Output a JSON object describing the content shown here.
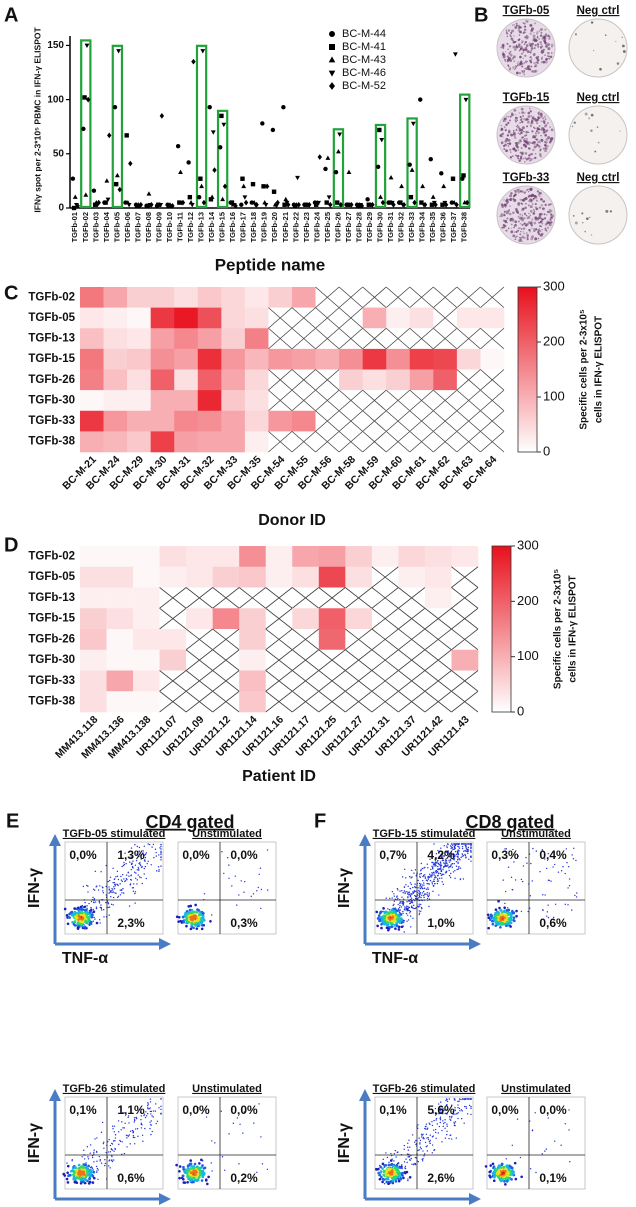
{
  "panel_labels": [
    "A",
    "B",
    "C",
    "D",
    "E",
    "F"
  ],
  "chart_data": [
    {
      "type": "scatter",
      "ylabel": "IFNγ spot per 2-3*10⁵ PBMC in IFN-γ ELISPOT",
      "xlabel": "Peptide name",
      "categories": [
        "TGFb-01",
        "TGFb-02",
        "TGFb-03",
        "TGFb-04",
        "TGFb-05",
        "TGFb-06",
        "TGFb-07",
        "TGFb-08",
        "TGFb-09",
        "TGFb-10",
        "TGFb-11",
        "TGFb-12",
        "TGFb-13",
        "TGFb-14",
        "TGFb-15",
        "TGFb-16",
        "TGFb-17",
        "TGFb-18",
        "TGFb-19",
        "TGFb-20",
        "TGFb-21",
        "TGFb-22",
        "TGFb-23",
        "TGFb-24",
        "TGFb-25",
        "TGFb-26",
        "TGFb-27",
        "TGFb-28",
        "TGFb-29",
        "TGFb-30",
        "TGFb-31",
        "TGFb-32",
        "TGFb-33",
        "TGFb-34",
        "TGFb-35",
        "TGFb-36",
        "TGFb-37",
        "TGFb-38"
      ],
      "series": [
        {
          "name": "BC-M-44",
          "marker": "circle",
          "color": "#000000",
          "values": [
            27,
            73,
            16,
            5,
            93,
            5,
            3,
            2,
            2,
            3,
            57,
            42,
            10,
            93,
            56,
            5,
            3,
            5,
            78,
            72,
            93,
            3,
            3,
            5,
            36,
            33,
            3,
            3,
            8,
            38,
            5,
            5,
            40,
            100,
            45,
            32,
            5,
            27
          ]
        },
        {
          "name": "BC-M-41",
          "marker": "square",
          "color": "#000000",
          "values": [
            0,
            102,
            3,
            5,
            22,
            67,
            2,
            2,
            3,
            2,
            5,
            10,
            27,
            8,
            85,
            5,
            27,
            22,
            20,
            15,
            3,
            2,
            3,
            3,
            5,
            5,
            3,
            2,
            3,
            72,
            5,
            5,
            10,
            5,
            3,
            3,
            27,
            30
          ]
        },
        {
          "name": "BC-M-43",
          "marker": "triangle",
          "color": "#000000",
          "values": [
            10,
            12,
            5,
            25,
            30,
            5,
            3,
            13,
            3,
            3,
            33,
            5,
            20,
            10,
            8,
            3,
            20,
            5,
            5,
            3,
            8,
            3,
            3,
            5,
            46,
            52,
            33,
            3,
            3,
            10,
            28,
            20,
            35,
            20,
            10,
            20,
            5,
            5
          ]
        },
        {
          "name": "BC-M-46",
          "marker": "triangle-down",
          "color": "#000000",
          "values": [
            3,
            150,
            3,
            8,
            145,
            3,
            2,
            3,
            3,
            2,
            5,
            3,
            145,
            70,
            77,
            3,
            10,
            3,
            3,
            2,
            5,
            28,
            3,
            5,
            10,
            68,
            3,
            3,
            3,
            63,
            5,
            3,
            78,
            3,
            5,
            5,
            142,
            100
          ]
        },
        {
          "name": "BC-M-52",
          "marker": "diamond",
          "color": "#000000",
          "values": [
            2,
            100,
            5,
            67,
            17,
            41,
            3,
            3,
            85,
            2,
            5,
            135,
            5,
            35,
            20,
            2,
            5,
            3,
            20,
            5,
            3,
            3,
            3,
            47,
            3,
            3,
            3,
            2,
            3,
            5,
            3,
            3,
            5,
            3,
            3,
            3,
            3,
            5
          ]
        }
      ],
      "ylim": [
        0,
        155
      ],
      "yticks": [
        0,
        50,
        100,
        150
      ],
      "legend": "upper right",
      "highlight": [
        1,
        4,
        12,
        14,
        25,
        29,
        32,
        37
      ],
      "highlight_color": "#22a33a"
    },
    {
      "type": "heatmap",
      "rows": [
        "TGFb-02",
        "TGFb-05",
        "TGFb-13",
        "TGFb-15",
        "TGFb-26",
        "TGFb-30",
        "TGFb-33",
        "TGFb-38"
      ],
      "categories": [
        "BC-M-21",
        "BC-M-24",
        "BC-M-29",
        "BC-M-30",
        "BC-M-31",
        "BC-M-32",
        "BC-M-33",
        "BC-M-35",
        "BC-M-54",
        "BC-M-55",
        "BC-M-56",
        "BC-M-58",
        "BC-M-59",
        "BC-M-60",
        "BC-M-61",
        "BC-M-62",
        "BC-M-63",
        "BC-M-64"
      ],
      "values": [
        [
          170,
          110,
          60,
          60,
          40,
          70,
          50,
          30,
          60,
          110,
          null,
          null,
          null,
          null,
          null,
          null,
          null,
          null
        ],
        [
          30,
          20,
          10,
          250,
          290,
          220,
          50,
          40,
          null,
          null,
          null,
          null,
          100,
          20,
          40,
          null,
          30,
          30
        ],
        [
          80,
          40,
          30,
          120,
          150,
          120,
          60,
          160,
          null,
          null,
          null,
          null,
          null,
          null,
          null,
          null,
          null,
          null
        ],
        [
          170,
          60,
          70,
          140,
          120,
          260,
          130,
          90,
          130,
          120,
          100,
          140,
          250,
          140,
          240,
          230,
          50,
          10
        ],
        [
          160,
          80,
          40,
          200,
          40,
          200,
          110,
          50,
          null,
          null,
          null,
          60,
          40,
          60,
          120,
          200,
          null,
          null
        ],
        [
          10,
          20,
          20,
          100,
          100,
          270,
          70,
          40,
          null,
          null,
          null,
          null,
          null,
          null,
          null,
          null,
          null,
          null
        ],
        [
          250,
          130,
          100,
          100,
          150,
          140,
          110,
          50,
          130,
          150,
          null,
          null,
          null,
          null,
          null,
          null,
          null,
          null
        ],
        [
          100,
          90,
          70,
          240,
          120,
          110,
          110,
          20,
          null,
          null,
          null,
          null,
          null,
          null,
          null,
          null,
          null,
          null
        ]
      ],
      "zlim": [
        0,
        300
      ],
      "zticks": [
        0,
        100,
        200,
        300
      ],
      "cmap": [
        "#ffffff",
        "#e8101c"
      ],
      "xlabel": "Donor ID",
      "colorbar_label": [
        "Specific cells per 2-3x10⁵",
        "cells in IFN-γ ELISPOT"
      ]
    },
    {
      "type": "heatmap",
      "rows": [
        "TGFb-02",
        "TGFb-05",
        "TGFb-13",
        "TGFb-15",
        "TGFb-26",
        "TGFb-30",
        "TGFb-33",
        "TGFb-38"
      ],
      "categories": [
        "MM413.118",
        "MM413.136",
        "MM413.138",
        "UR1121.07",
        "UR1121.09",
        "UR1121.12",
        "UR1121.14",
        "UR1121.16",
        "UR1121.17",
        "UR1121.25",
        "UR1121.27",
        "UR1121.31",
        "UR1121.37",
        "UR1121.42",
        "UR1121.43"
      ],
      "values": [
        [
          10,
          10,
          10,
          40,
          30,
          30,
          140,
          20,
          110,
          120,
          60,
          20,
          50,
          40,
          30
        ],
        [
          40,
          40,
          10,
          20,
          30,
          60,
          70,
          20,
          40,
          230,
          40,
          null,
          20,
          30,
          null
        ],
        [
          20,
          20,
          20,
          null,
          null,
          null,
          null,
          null,
          null,
          null,
          null,
          null,
          null,
          20,
          null
        ],
        [
          60,
          40,
          20,
          null,
          30,
          150,
          60,
          null,
          50,
          200,
          50,
          null,
          null,
          null,
          null
        ],
        [
          70,
          10,
          30,
          30,
          null,
          null,
          60,
          null,
          null,
          190,
          null,
          null,
          null,
          null,
          null
        ],
        [
          20,
          10,
          10,
          60,
          null,
          null,
          20,
          null,
          null,
          null,
          null,
          null,
          null,
          null,
          100
        ],
        [
          40,
          110,
          30,
          null,
          null,
          null,
          80,
          null,
          null,
          null,
          null,
          null,
          null,
          null,
          null
        ],
        [
          40,
          10,
          10,
          null,
          null,
          null,
          70,
          null,
          null,
          null,
          null,
          null,
          null,
          null,
          null
        ]
      ],
      "zlim": [
        0,
        300
      ],
      "zticks": [
        0,
        100,
        200,
        300
      ],
      "cmap": [
        "#ffffff",
        "#e8101c"
      ],
      "xlabel": "Patient ID",
      "colorbar_label": [
        "Specific cells per 2-3x10⁵",
        "cells in IFN-γ ELISPOT"
      ]
    }
  ],
  "elispot": {
    "wells": [
      {
        "label": "TGFb-05"
      },
      {
        "label": "Neg ctrl"
      },
      {
        "label": "TGFb-15"
      },
      {
        "label": "Neg ctrl"
      },
      {
        "label": "TGFb-33"
      },
      {
        "label": "Neg ctrl"
      }
    ]
  },
  "flow": [
    {
      "title": "CD4 gated",
      "y_label": "IFN-γ",
      "x_label": "TNF-α",
      "plots": [
        {
          "title": "TGFb-05 stimulated",
          "quadrants": [
            "0,0%",
            "1,3%",
            "2,3%"
          ]
        },
        {
          "title": "Unstimulated",
          "quadrants": [
            "0,0%",
            "0,0%",
            "0,3%"
          ]
        },
        {
          "title": "TGFb-26 stimulated",
          "quadrants": [
            "0,1%",
            "1,1%",
            "0,6%"
          ]
        },
        {
          "title": "Unstimulated",
          "quadrants": [
            "0,0%",
            "0,0%",
            "0,2%"
          ]
        }
      ]
    },
    {
      "title": "CD8 gated",
      "y_label": "IFN-γ",
      "x_label": "TNF-α",
      "plots": [
        {
          "title": "TGFb-15 stimulated",
          "quadrants": [
            "0,7%",
            "4,2%",
            "1,0%"
          ]
        },
        {
          "title": "Unstimulated",
          "quadrants": [
            "0,3%",
            "0,4%",
            "0,6%"
          ]
        },
        {
          "title": "TGFb-26 stimulated",
          "quadrants": [
            "0,1%",
            "5,6%",
            "2,6%"
          ]
        },
        {
          "title": "Unstimulated",
          "quadrants": [
            "0,0%",
            "0,0%",
            "0,1%"
          ]
        }
      ]
    }
  ]
}
